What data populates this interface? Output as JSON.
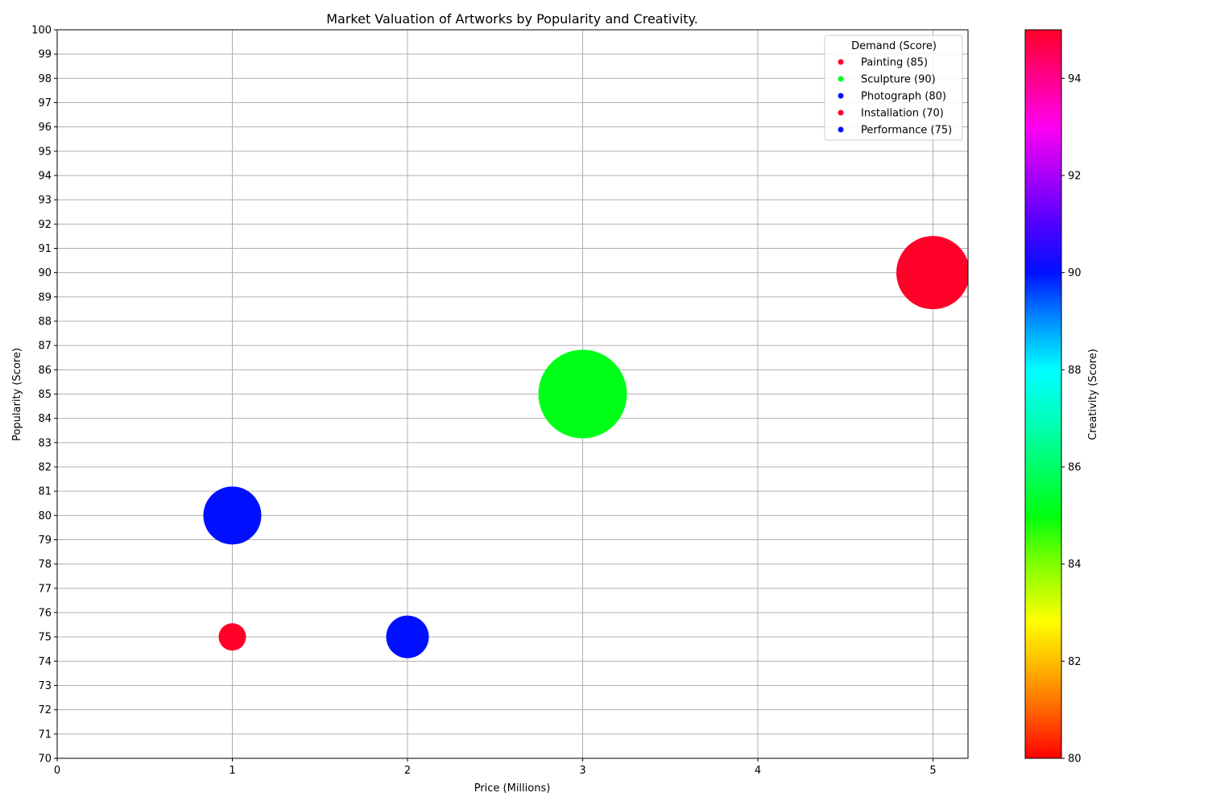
{
  "chart_data": {
    "type": "scatter",
    "title": "Market Valuation of Artworks by Popularity and Creativity.",
    "xlabel": "Price (Millions)",
    "ylabel": "Popularity (Score)",
    "xlim": [
      0,
      5.2
    ],
    "ylim": [
      70,
      100
    ],
    "xticks": [
      0,
      1,
      2,
      3,
      4,
      5
    ],
    "yticks": [
      70,
      71,
      72,
      73,
      74,
      75,
      76,
      77,
      78,
      79,
      80,
      81,
      82,
      83,
      84,
      85,
      86,
      87,
      88,
      89,
      90,
      91,
      92,
      93,
      94,
      95,
      96,
      97,
      98,
      99,
      100
    ],
    "grid": true,
    "legend": {
      "title": "Demand (Score)",
      "placement": "top-right",
      "entries": [
        {
          "label": "Painting (85)",
          "color": "#ff0029"
        },
        {
          "label": "Sculpture (90)",
          "color": "#00ff18"
        },
        {
          "label": "Photograph (80)",
          "color": "#0010ff"
        },
        {
          "label": "Installation (70)",
          "color": "#ff0029"
        },
        {
          "label": "Performance (75)",
          "color": "#0010ff"
        }
      ]
    },
    "points": [
      {
        "x": 5,
        "y": 90,
        "creativity": 95,
        "size": 85,
        "color": "#ff0029"
      },
      {
        "x": 3,
        "y": 85,
        "creativity": 85,
        "size": 90,
        "color": "#00ff18"
      },
      {
        "x": 1,
        "y": 80,
        "creativity": 90,
        "size": 80,
        "color": "#0010ff"
      },
      {
        "x": 1,
        "y": 75,
        "creativity": 80,
        "size": 70,
        "color": "#ff0029"
      },
      {
        "x": 2,
        "y": 75,
        "creativity": 90,
        "size": 75,
        "color": "#0010ff"
      }
    ],
    "colorbar": {
      "label": "Creativity (Score)",
      "range": [
        80,
        95
      ],
      "ticks": [
        80,
        82,
        84,
        86,
        88,
        90,
        92,
        94
      ],
      "colormap": "hsv"
    }
  }
}
